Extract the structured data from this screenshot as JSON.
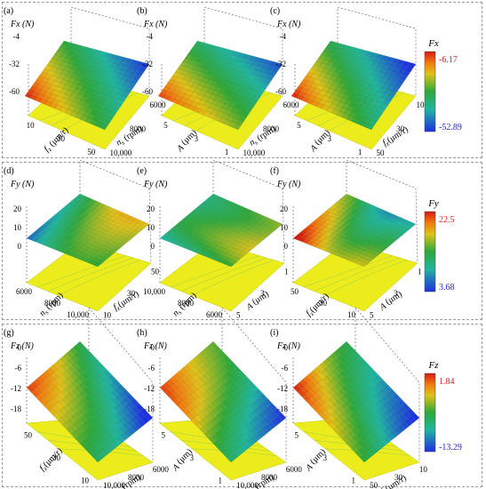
{
  "rows": [
    {
      "panels": [
        {
          "label": "(a)",
          "zlabel": "Fx (N)",
          "zticks": [
            "-4",
            "-32",
            "-60"
          ],
          "xlabel": "f",
          "xsub": "z",
          "xunit": " (μm/r)",
          "xticks": [
            "10",
            "30",
            "50"
          ],
          "ylabel": "n",
          "ysub": "s",
          "yunit": " (rpm)",
          "yticks": [
            "10,000",
            "8000",
            "6000"
          ],
          "style": "a"
        },
        {
          "label": "(b)",
          "zlabel": "Fx (N)",
          "zticks": [
            "-4",
            "-32",
            "-60"
          ],
          "xlabel": "A",
          "xsub": "",
          "xunit": " (μm)",
          "xticks": [
            "5",
            "3",
            "1"
          ],
          "ylabel": "n",
          "ysub": "s",
          "yunit": " (rpm)",
          "yticks": [
            "10,000",
            "8000",
            "6000"
          ],
          "style": "b"
        },
        {
          "label": "(c)",
          "zlabel": "Fx (N)",
          "zticks": [
            "-4",
            "-32",
            "-60"
          ],
          "xlabel": "A",
          "xsub": "",
          "xunit": " (μm)",
          "xticks": [
            "5",
            "3",
            "1"
          ],
          "ylabel": "f",
          "ysub": "z",
          "yunit": "(μm/r)",
          "yticks": [
            "50",
            "30",
            "10"
          ],
          "style": "c"
        }
      ],
      "colorbar": {
        "title": "Fx",
        "max": "-6.17",
        "min": "-52.89"
      }
    },
    {
      "panels": [
        {
          "label": "(d)",
          "zlabel": "Fy (N)",
          "zticks": [
            "20",
            "10",
            "0"
          ],
          "xlabel": "n",
          "xsub": "s",
          "xunit": " (rpm)",
          "xticks": [
            "6000",
            "8000",
            "10,000"
          ],
          "ylabel": "f",
          "ysub": "z",
          "yunit": "(μm/r)",
          "yticks": [
            "10",
            "30",
            "50"
          ],
          "style": "d"
        },
        {
          "label": "(e)",
          "zlabel": "Fy (N)",
          "zticks": [
            "20",
            "10",
            "0"
          ],
          "xlabel": "n",
          "xsub": "s",
          "xunit": " (rpm)",
          "xticks": [
            "10,000",
            "8000",
            "6000"
          ],
          "ylabel": "A",
          "ysub": "",
          "yunit": " (μm)",
          "yticks": [
            "5",
            "3",
            "1"
          ],
          "style": "e"
        },
        {
          "label": "(f)",
          "zlabel": "Fy (N)",
          "zticks": [
            "20",
            "10",
            "0"
          ],
          "xlabel": "f",
          "xsub": "z",
          "xunit": "(μm/r)",
          "xticks": [
            "50",
            "30",
            "10"
          ],
          "ylabel": "A",
          "ysub": "",
          "yunit": " (μm)",
          "yticks": [
            "5",
            "3",
            "1"
          ],
          "style": "f"
        }
      ],
      "colorbar": {
        "title": "Fy",
        "max": "22.5",
        "min": "3.68"
      }
    },
    {
      "panels": [
        {
          "label": "(g)",
          "zlabel": "Fz (N)",
          "zticks": [
            "0",
            "-6",
            "-12",
            "-18"
          ],
          "xlabel": "f",
          "xsub": "z",
          "xunit": "(μm/r)",
          "xticks": [
            "50",
            "30",
            "10"
          ],
          "ylabel": "n",
          "ysub": "s",
          "yunit": " (rpm)",
          "yticks": [
            "10,000",
            "8000",
            "6000"
          ],
          "style": "g"
        },
        {
          "label": "(h)",
          "zlabel": "Fz (N)",
          "zticks": [
            "0",
            "-6",
            "-12",
            "-18"
          ],
          "xlabel": "A",
          "xsub": "",
          "xunit": " (μm)",
          "xticks": [
            "5",
            "3",
            "1"
          ],
          "ylabel": "n",
          "ysub": "s",
          "yunit": " (rpm)",
          "yticks": [
            "10,000",
            "8000",
            "6000"
          ],
          "style": "h"
        },
        {
          "label": "(i)",
          "zlabel": "Fz (N)",
          "zticks": [
            "0",
            "-6",
            "-12",
            "-18"
          ],
          "xlabel": "A",
          "xsub": "",
          "xunit": " (μm)",
          "xticks": [
            "5",
            "3",
            "1"
          ],
          "ylabel": "f",
          "ysub": "z",
          "yunit": "(μm/r)",
          "yticks": [
            "50",
            "30",
            "10"
          ],
          "style": "i"
        }
      ],
      "colorbar": {
        "title": "Fz",
        "max": "1.84",
        "min": "-13.29"
      }
    }
  ],
  "colors": {
    "surface_high": "#d42a10",
    "surface_mid": "#2e9a3a",
    "surface_low": "#2a4bd8",
    "plane": "#ecec1c",
    "bar_max_text": "#e02020",
    "bar_min_text": "#2020e0"
  },
  "chart_data": {
    "type": "surface",
    "charts": [
      {
        "panel": "(a)",
        "z": "Fx (N)",
        "x": "fz (μm/r)",
        "y": "ns (rpm)",
        "zrange": [
          -60,
          -4
        ]
      },
      {
        "panel": "(b)",
        "z": "Fx (N)",
        "x": "A (μm)",
        "y": "ns (rpm)",
        "zrange": [
          -60,
          -4
        ]
      },
      {
        "panel": "(c)",
        "z": "Fx (N)",
        "x": "A (μm)",
        "y": "fz(μm/r)",
        "zrange": [
          -60,
          -4
        ]
      },
      {
        "panel": "(d)",
        "z": "Fy (N)",
        "x": "ns (rpm)",
        "y": "fz(μm/r)",
        "zrange": [
          0,
          20
        ]
      },
      {
        "panel": "(e)",
        "z": "Fy (N)",
        "x": "ns (rpm)",
        "y": "A (μm)",
        "zrange": [
          0,
          20
        ]
      },
      {
        "panel": "(f)",
        "z": "Fy (N)",
        "x": "fz(μm/r)",
        "y": "A (μm)",
        "zrange": [
          0,
          20
        ]
      },
      {
        "panel": "(g)",
        "z": "Fz (N)",
        "x": "fz(μm/r)",
        "y": "ns (rpm)",
        "zrange": [
          -18,
          0
        ]
      },
      {
        "panel": "(h)",
        "z": "Fz (N)",
        "x": "A (μm)",
        "y": "ns (rpm)",
        "zrange": [
          -18,
          0
        ]
      },
      {
        "panel": "(i)",
        "z": "Fz (N)",
        "x": "A (μm)",
        "y": "fz(μm/r)",
        "zrange": [
          -18,
          0
        ]
      }
    ],
    "colorbars": [
      {
        "name": "Fx",
        "range": [
          -52.89,
          -6.17
        ]
      },
      {
        "name": "Fy",
        "range": [
          3.68,
          22.5
        ]
      },
      {
        "name": "Fz",
        "range": [
          -13.29,
          1.84
        ]
      }
    ]
  }
}
